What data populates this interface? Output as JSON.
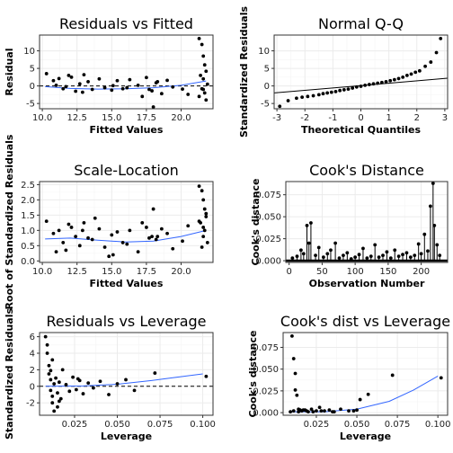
{
  "colors": {
    "points": "#000000",
    "smooth": "#3366ff",
    "refline": "#000000",
    "grid": "#ebebeb"
  },
  "chart_data": [
    {
      "id": "resid_fitted",
      "type": "scatter",
      "title": "Residuals vs Fitted",
      "xlabel": "Fitted Values",
      "ylabel": "Residual",
      "xlim": [
        9.8,
        22.3
      ],
      "ylim": [
        -6.5,
        14.5
      ],
      "xticks": [
        10.0,
        12.5,
        15.0,
        17.5,
        20.0
      ],
      "xtick_labels": [
        "10.0",
        "12.5",
        "15.0",
        "17.5",
        "20.0"
      ],
      "yticks": [
        -5,
        0,
        5,
        10
      ],
      "ytick_labels": [
        "-5",
        "0",
        "5",
        "10"
      ],
      "hline": 0,
      "smooth": {
        "x": [
          10.2,
          12.0,
          14.0,
          16.0,
          18.0,
          20.0,
          21.8
        ],
        "y": [
          -0.2,
          -0.7,
          -0.9,
          -0.8,
          -0.5,
          0.2,
          1.4
        ]
      },
      "x": [
        10.3,
        10.8,
        11.2,
        11.5,
        11.9,
        12.1,
        12.4,
        12.7,
        13.0,
        13.3,
        13.6,
        14.1,
        14.5,
        15.0,
        15.4,
        15.8,
        16.3,
        16.9,
        17.2,
        17.5,
        17.9,
        18.2,
        18.6,
        19.0,
        19.4,
        20.1,
        20.5,
        11.7,
        12.9,
        15.1,
        17.7,
        18.3,
        21.3,
        21.5,
        21.6,
        21.7,
        21.8,
        21.4,
        21.6,
        21.9,
        21.5,
        21.7,
        21.3,
        21.8,
        21.6,
        18.0,
        11.0,
        16.1
      ],
      "y": [
        3.5,
        1.5,
        2.1,
        -0.8,
        3.0,
        2.5,
        -1.5,
        0.6,
        3.2,
        1.2,
        -1.0,
        2.0,
        -0.5,
        -1.2,
        1.5,
        -0.8,
        1.8,
        0.2,
        -3.0,
        2.4,
        -1.4,
        0.9,
        -2.2,
        1.6,
        -0.3,
        -0.9,
        -2.4,
        -0.2,
        -1.8,
        0.1,
        -1.0,
        1.2,
        13.5,
        11.8,
        8.5,
        6.0,
        4.2,
        3.0,
        2.0,
        0.5,
        -0.8,
        -2.0,
        -3.0,
        -4.0,
        -1.0,
        -6.0,
        0.2,
        -0.5
      ]
    },
    {
      "id": "normal_qq",
      "type": "scatter",
      "title": "Normal Q-Q",
      "xlabel": "Theoretical Quantiles",
      "ylabel": "Standardized Residuals",
      "xlim": [
        -3.1,
        3.1
      ],
      "ylim": [
        -6.5,
        14.5
      ],
      "xticks": [
        -3,
        -2,
        -1,
        0,
        1,
        2,
        3
      ],
      "xtick_labels": [
        "-3",
        "-2",
        "-1",
        "0",
        "1",
        "2",
        "3"
      ],
      "yticks": [
        -5,
        0,
        5,
        10
      ],
      "ytick_labels": [
        "-5",
        "0",
        "5",
        "10"
      ],
      "refline": {
        "x": [
          -3.1,
          3.1
        ],
        "y": [
          -2.0,
          2.2
        ]
      },
      "x": [
        -2.9,
        -2.6,
        -2.3,
        -2.1,
        -1.9,
        -1.7,
        -1.5,
        -1.35,
        -1.2,
        -1.05,
        -0.9,
        -0.75,
        -0.6,
        -0.45,
        -0.3,
        -0.15,
        0.0,
        0.15,
        0.3,
        0.45,
        0.6,
        0.75,
        0.9,
        1.05,
        1.2,
        1.35,
        1.5,
        1.65,
        1.8,
        1.95,
        2.1,
        2.3,
        2.5,
        2.7,
        2.85
      ],
      "y": [
        -5.8,
        -4.2,
        -3.5,
        -3.2,
        -3.0,
        -2.8,
        -2.5,
        -2.2,
        -2.0,
        -1.8,
        -1.6,
        -1.3,
        -1.1,
        -0.9,
        -0.6,
        -0.3,
        -0.1,
        0.2,
        0.4,
        0.6,
        0.8,
        1.0,
        1.2,
        1.5,
        1.8,
        2.1,
        2.5,
        3.0,
        3.4,
        3.9,
        4.3,
        5.6,
        6.8,
        9.5,
        13.5
      ]
    },
    {
      "id": "scale_location",
      "type": "scatter",
      "title": "Scale-Location",
      "xlabel": "Fitted Values",
      "ylabel": "Root of Standardized Residuals",
      "xlim": [
        9.8,
        22.3
      ],
      "ylim": [
        -0.05,
        2.6
      ],
      "xticks": [
        10.0,
        12.5,
        15.0,
        17.5,
        20.0
      ],
      "xtick_labels": [
        "10.0",
        "12.5",
        "15.0",
        "17.5",
        "20.0"
      ],
      "yticks": [
        0.0,
        0.5,
        1.0,
        1.5,
        2.0,
        2.5
      ],
      "ytick_labels": [
        "0.0",
        "0.5",
        "1.0",
        "1.5",
        "2.0",
        "2.5"
      ],
      "smooth": {
        "x": [
          10.2,
          12.0,
          14.0,
          16.0,
          18.0,
          20.0,
          21.8
        ],
        "y": [
          0.72,
          0.75,
          0.68,
          0.62,
          0.65,
          0.8,
          1.0
        ]
      },
      "x": [
        10.3,
        10.8,
        11.2,
        11.5,
        11.9,
        12.1,
        12.4,
        12.7,
        13.0,
        13.3,
        13.6,
        14.1,
        14.5,
        15.0,
        15.4,
        15.8,
        16.3,
        16.9,
        17.2,
        17.5,
        17.9,
        18.2,
        18.6,
        19.0,
        19.4,
        20.1,
        20.5,
        11.7,
        12.9,
        15.1,
        17.7,
        18.3,
        21.3,
        21.5,
        21.6,
        21.7,
        21.8,
        21.4,
        21.6,
        21.9,
        21.5,
        21.7,
        21.3,
        21.8,
        21.6,
        18.0,
        11.0,
        16.1,
        13.8,
        14.8
      ],
      "y": [
        1.3,
        0.9,
        1.0,
        0.6,
        1.2,
        1.1,
        0.8,
        0.5,
        1.25,
        0.75,
        0.7,
        1.05,
        0.45,
        0.85,
        0.95,
        0.6,
        1.0,
        0.3,
        1.25,
        1.1,
        0.8,
        0.7,
        1.05,
        0.9,
        0.4,
        0.65,
        1.15,
        0.35,
        1.0,
        0.2,
        0.75,
        0.8,
        2.45,
        2.3,
        2.0,
        1.7,
        1.45,
        1.25,
        1.1,
        0.6,
        0.45,
        1.0,
        1.3,
        1.55,
        0.8,
        1.7,
        0.3,
        0.55,
        1.4,
        0.15
      ]
    },
    {
      "id": "cooks_distance",
      "type": "scatter",
      "title": "Cook's Distance",
      "xlabel": "Observation Number",
      "ylabel": "Cook's distance",
      "xlim": [
        -5,
        240
      ],
      "ylim": [
        -0.002,
        0.09
      ],
      "xticks": [
        0,
        50,
        100,
        150,
        200
      ],
      "xtick_labels": [
        "0",
        "50",
        "100",
        "150",
        "200"
      ],
      "yticks": [
        0.0,
        0.025,
        0.05,
        0.075
      ],
      "ytick_labels": [
        "0.000",
        "0.025",
        "0.050",
        "0.075"
      ],
      "x": [
        5,
        12,
        18,
        22,
        27,
        30,
        33,
        40,
        45,
        52,
        58,
        63,
        70,
        76,
        82,
        88,
        94,
        100,
        106,
        112,
        118,
        124,
        130,
        136,
        142,
        148,
        154,
        160,
        166,
        172,
        178,
        184,
        190,
        196,
        200,
        205,
        210,
        214,
        218,
        220,
        224,
        228
      ],
      "y": [
        0.003,
        0.005,
        0.012,
        0.008,
        0.04,
        0.02,
        0.043,
        0.006,
        0.015,
        0.004,
        0.008,
        0.012,
        0.02,
        0.003,
        0.006,
        0.009,
        0.002,
        0.004,
        0.007,
        0.014,
        0.003,
        0.005,
        0.018,
        0.004,
        0.006,
        0.01,
        0.003,
        0.012,
        0.005,
        0.007,
        0.009,
        0.004,
        0.006,
        0.019,
        0.008,
        0.03,
        0.011,
        0.062,
        0.088,
        0.04,
        0.018,
        0.006
      ]
    },
    {
      "id": "resid_leverage",
      "type": "scatter",
      "title": "Residuals vs Leverage",
      "xlabel": "Leverage",
      "ylabel": "Standardized Residuals",
      "xlim": [
        0.0045,
        0.106
      ],
      "ylim": [
        -3.5,
        6.5
      ],
      "xticks": [
        0.025,
        0.05,
        0.075,
        0.1
      ],
      "xtick_labels": [
        "0.025",
        "0.050",
        "0.075",
        "0.100"
      ],
      "yticks": [
        -2,
        0,
        2,
        4,
        6
      ],
      "ytick_labels": [
        "-2",
        "0",
        "2",
        "4",
        "6"
      ],
      "hline": 0,
      "smooth": {
        "x": [
          0.008,
          0.03,
          0.05,
          0.07,
          0.085,
          0.1
        ],
        "y": [
          0.0,
          0.05,
          0.25,
          0.7,
          1.1,
          1.5
        ]
      },
      "x": [
        0.008,
        0.009,
        0.01,
        0.01,
        0.011,
        0.011,
        0.012,
        0.012,
        0.013,
        0.013,
        0.014,
        0.015,
        0.016,
        0.017,
        0.018,
        0.02,
        0.022,
        0.024,
        0.026,
        0.028,
        0.03,
        0.033,
        0.036,
        0.04,
        0.045,
        0.05,
        0.055,
        0.06,
        0.072,
        0.102,
        0.009,
        0.012,
        0.015,
        0.011,
        0.016,
        0.027
      ],
      "y": [
        6.0,
        4.0,
        2.5,
        1.5,
        0.8,
        -0.5,
        -1.2,
        -2.0,
        -3.0,
        0.3,
        1.0,
        -0.8,
        0.5,
        -1.5,
        2.0,
        0.2,
        -0.6,
        1.1,
        -0.4,
        0.7,
        -0.9,
        0.4,
        -0.2,
        0.6,
        -1.0,
        0.3,
        0.8,
        -0.5,
        1.6,
        1.2,
        5.0,
        3.2,
        -2.5,
        1.9,
        -1.8,
        0.9
      ]
    },
    {
      "id": "cooks_leverage",
      "type": "scatter",
      "title": "Cook's dist vs Leverage",
      "xlabel": "Leverage",
      "ylabel": "Cook's distance",
      "xlim": [
        0.0045,
        0.106
      ],
      "ylim": [
        -0.003,
        0.092
      ],
      "xticks": [
        0.025,
        0.05,
        0.075,
        0.1
      ],
      "xtick_labels": [
        "0.025",
        "0.050",
        "0.075",
        "0.100"
      ],
      "yticks": [
        0.0,
        0.025,
        0.05,
        0.075
      ],
      "ytick_labels": [
        "0.000",
        "0.025",
        "0.050",
        "0.075"
      ],
      "smooth": {
        "x": [
          0.008,
          0.03,
          0.05,
          0.07,
          0.085,
          0.1
        ],
        "y": [
          0.001,
          0.001,
          0.004,
          0.013,
          0.026,
          0.042
        ]
      },
      "x": [
        0.01,
        0.011,
        0.012,
        0.012,
        0.013,
        0.014,
        0.015,
        0.016,
        0.018,
        0.02,
        0.022,
        0.025,
        0.027,
        0.03,
        0.033,
        0.036,
        0.04,
        0.045,
        0.05,
        0.052,
        0.057,
        0.072,
        0.102,
        0.009,
        0.011,
        0.014,
        0.017,
        0.019,
        0.023,
        0.028,
        0.035,
        0.048
      ],
      "y": [
        0.088,
        0.062,
        0.045,
        0.026,
        0.02,
        0.004,
        0.003,
        0.002,
        0.003,
        0.001,
        0.004,
        0.002,
        0.006,
        0.002,
        0.003,
        0.001,
        0.004,
        0.002,
        0.003,
        0.015,
        0.021,
        0.043,
        0.04,
        0.001,
        0.002,
        0.001,
        0.003,
        0.002,
        0.001,
        0.002,
        0.001,
        0.002
      ]
    }
  ]
}
